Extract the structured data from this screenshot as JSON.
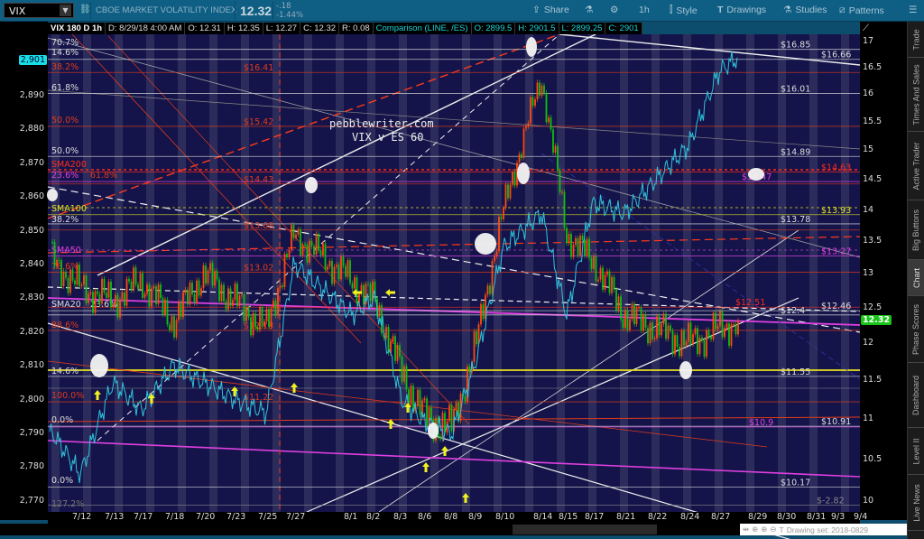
{
  "toolbar": {
    "symbol": "VIX",
    "description": "CBOE MARKET VOLATILITY INDEX",
    "last": "12.32",
    "change": "-.18",
    "change_pct": "-1.44%",
    "share": "Share",
    "timeframe": "1h",
    "style": "Style",
    "drawings": "Drawings",
    "studies": "Studies",
    "patterns": "Patterns"
  },
  "info_bar": {
    "title": "VIX 180 D 1h",
    "date": "D: 8/29/18 4:00 AM",
    "open": "O: 12.31",
    "high": "H: 12.35",
    "low": "L: 12.27",
    "close": "C: 12.32",
    "range": "R: 0.08",
    "comparison": "Comparison (LINE, /ES)",
    "cmp_open": "O: 2899.5",
    "cmp_high": "H: 2901.5",
    "cmp_low": "L: 2899.25",
    "cmp_close": "C: 2901"
  },
  "annotation": {
    "line1": "pebblewriter.com",
    "line2": "VIX v ES 60"
  },
  "left_axis": {
    "ticks": [
      "2,890",
      "2,880",
      "2,870",
      "2,860",
      "2,850",
      "2,840",
      "2,830",
      "2,820",
      "2,810",
      "2,800",
      "2,790",
      "2,780",
      "2,770"
    ],
    "current": "2,901",
    "current_color": "#19e0e6"
  },
  "right_axis": {
    "ticks": [
      "17",
      "16.5",
      "16",
      "15.5",
      "15",
      "14.5",
      "14",
      "13.5",
      "13",
      "12.5",
      "12",
      "11.5",
      "11",
      "10.5",
      "10"
    ],
    "current": "12.32",
    "current_color": "#19c419"
  },
  "date_axis": [
    "7/12",
    "7/13",
    "7/17",
    "7/18",
    "7/20",
    "7/23",
    "7/25",
    "7/27",
    "8/1",
    "8/2",
    "8/3",
    "8/6",
    "8/8",
    "8/9",
    "8/10",
    "8/14",
    "8/15",
    "8/17",
    "8/21",
    "8/22",
    "8/24",
    "8/27",
    "8/29",
    "8/30",
    "8/31",
    "9/3",
    "9/4"
  ],
  "price_levels": [
    {
      "label": "$16.85",
      "value": 16.85,
      "color": "#dddddd"
    },
    {
      "label": "$16.66",
      "value": 16.66,
      "color": "#dddddd"
    },
    {
      "label": "$16.41",
      "value": 16.41,
      "color": "#e03a1a"
    },
    {
      "label": "$16.01",
      "value": 16.01,
      "color": "#dddddd"
    },
    {
      "label": "$15.42",
      "value": 15.42,
      "color": "#e03a1a"
    },
    {
      "label": "$14.89",
      "value": 14.89,
      "color": "#dddddd"
    },
    {
      "label": "$14.63",
      "value": 14.63,
      "color": "#ff2a1a"
    },
    {
      "label": "$14.47",
      "value": 14.47,
      "color": "#e040e0"
    },
    {
      "label": "$14.43",
      "value": 14.43,
      "color": "#e03a1a"
    },
    {
      "label": "$13.93",
      "value": 13.93,
      "color": "#e0e020"
    },
    {
      "label": "$13.78",
      "value": 13.78,
      "color": "#dddddd"
    },
    {
      "label": "$13.68",
      "value": 13.68,
      "color": "#e03a1a"
    },
    {
      "label": "$13.27",
      "value": 13.27,
      "color": "#e040e0"
    },
    {
      "label": "$13.02",
      "value": 13.02,
      "color": "#e03a1a"
    },
    {
      "label": "$12.51",
      "value": 12.51,
      "color": "#ff2a1a"
    },
    {
      "label": "$12.46",
      "value": 12.46,
      "color": "#dddddd"
    },
    {
      "label": "$12.4",
      "value": 12.4,
      "color": "#dddddd"
    },
    {
      "label": "$12.18",
      "value": 12.18,
      "color": "#e03a1a"
    },
    {
      "label": "$11.55",
      "value": 11.55,
      "color": "#dddddd"
    },
    {
      "label": "$11.22",
      "value": 11.22,
      "color": "#e03a1a"
    },
    {
      "label": "$10.91",
      "value": 10.91,
      "color": "#dddddd"
    },
    {
      "label": "$10.9",
      "value": 10.9,
      "color": "#e040e0"
    },
    {
      "label": "$10.17",
      "value": 10.17,
      "color": "#dddddd"
    },
    {
      "label": "$-2.82",
      "value": 9.95,
      "color": "#888888"
    }
  ],
  "fib_labels": [
    {
      "label": "70.7%",
      "color": "#dddddd"
    },
    {
      "label": "14.6%",
      "color": "#dddddd"
    },
    {
      "label": "38.2%",
      "color": "#e03a1a"
    },
    {
      "label": "61.8%",
      "color": "#dddddd"
    },
    {
      "label": "50.0%",
      "color": "#e03a1a"
    },
    {
      "label": "50.0%",
      "color": "#dddddd"
    },
    {
      "label": "SMA200",
      "color": "#ff2a1a"
    },
    {
      "label": "23.6%",
      "color": "#e040e0"
    },
    {
      "label": "61.8%",
      "color": "#e03a1a"
    },
    {
      "label": "SMA100",
      "color": "#e0e020"
    },
    {
      "label": "38.2%",
      "color": "#dddddd"
    },
    {
      "label": "SMA50",
      "color": "#e040e0"
    },
    {
      "label": "78.6%",
      "color": "#e03a1a"
    },
    {
      "label": "SMA20",
      "color": "#dddddd"
    },
    {
      "label": "23.6%",
      "color": "#dddddd"
    },
    {
      "label": "88.6%",
      "color": "#e03a1a"
    },
    {
      "label": "14.6%",
      "color": "#dddddd"
    },
    {
      "label": "100.0%",
      "color": "#e03a1a"
    },
    {
      "label": "0.0%",
      "color": "#dddddd"
    },
    {
      "label": "0.0%",
      "color": "#dddddd"
    },
    {
      "label": "127.2%",
      "color": "#777777"
    }
  ],
  "chart_data": {
    "type": "line",
    "series": [
      {
        "name": "VIX",
        "axis": "right",
        "color": "#ff4a10",
        "points": [
          [
            "7/11",
            13.2
          ],
          [
            "7/12",
            12.8
          ],
          [
            "7/13",
            12.6
          ],
          [
            "7/17",
            12.9
          ],
          [
            "7/18",
            12.3
          ],
          [
            "7/20",
            13.0
          ],
          [
            "7/23",
            12.6
          ],
          [
            "7/25",
            12.2
          ],
          [
            "7/27",
            13.6
          ],
          [
            "8/1",
            12.9
          ],
          [
            "8/2",
            12.6
          ],
          [
            "8/3",
            11.6
          ],
          [
            "8/6",
            11.0
          ],
          [
            "8/8",
            10.9
          ],
          [
            "8/9",
            12.0
          ],
          [
            "8/10",
            14.0
          ],
          [
            "8/14",
            16.3
          ],
          [
            "8/15",
            13.6
          ],
          [
            "8/17",
            13.2
          ],
          [
            "8/21",
            12.4
          ],
          [
            "8/22",
            12.2
          ],
          [
            "8/24",
            12.0
          ],
          [
            "8/27",
            12.2
          ],
          [
            "8/28",
            12.32
          ]
        ]
      },
      {
        "name": "/ES",
        "axis": "left",
        "color": "#2fc4dc",
        "points": [
          [
            "7/11",
            2790
          ],
          [
            "7/12",
            2778
          ],
          [
            "7/13",
            2805
          ],
          [
            "7/17",
            2797
          ],
          [
            "7/18",
            2810
          ],
          [
            "7/20",
            2805
          ],
          [
            "7/23",
            2800
          ],
          [
            "7/25",
            2796
          ],
          [
            "7/27",
            2840
          ],
          [
            "8/1",
            2825
          ],
          [
            "8/2",
            2830
          ],
          [
            "8/3",
            2800
          ],
          [
            "8/6",
            2793
          ],
          [
            "8/8",
            2790
          ],
          [
            "8/9",
            2812
          ],
          [
            "8/10",
            2845
          ],
          [
            "8/14",
            2855
          ],
          [
            "8/15",
            2825
          ],
          [
            "8/17",
            2858
          ],
          [
            "8/21",
            2855
          ],
          [
            "8/22",
            2865
          ],
          [
            "8/24",
            2875
          ],
          [
            "8/27",
            2897
          ],
          [
            "8/28",
            2901
          ]
        ]
      }
    ],
    "ylim_left": [
      2770,
      2905
    ],
    "ylim_right": [
      10,
      17
    ],
    "right_scale": "log",
    "grid": false
  },
  "sidebar": {
    "items": [
      {
        "label": "Trade"
      },
      {
        "label": "Times And Sales"
      },
      {
        "label": "Active Trader"
      },
      {
        "label": "Big Buttons"
      },
      {
        "label": "Chart"
      },
      {
        "label": "Phase Scores"
      },
      {
        "label": "Dashboard"
      },
      {
        "label": "Level II"
      },
      {
        "label": "Live News"
      }
    ]
  },
  "footer": {
    "drawing_set": "Drawing set: 2018-0829"
  }
}
